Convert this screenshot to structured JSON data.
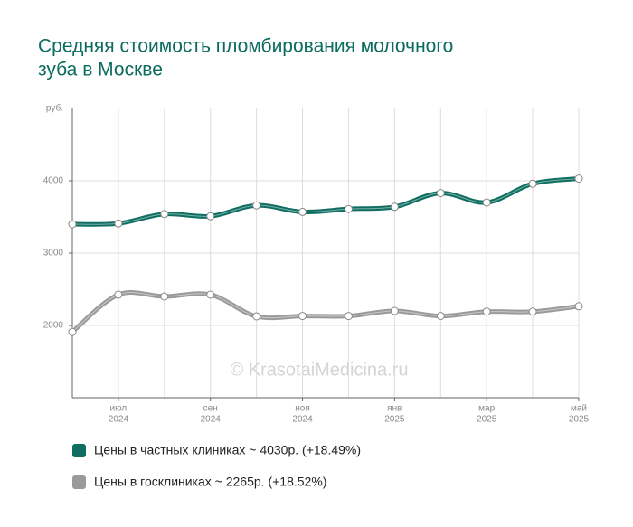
{
  "chart_data": {
    "type": "line",
    "title_lines": [
      "Средняя стоимость пломбирования молочного",
      "зуба в Москве"
    ],
    "y_label": "руб.",
    "categories": [
      null,
      [
        "июл",
        "2024"
      ],
      null,
      [
        "сен",
        "2024"
      ],
      null,
      [
        "ноя",
        "2024"
      ],
      null,
      [
        "янв",
        "2025"
      ],
      null,
      [
        "мар",
        "2025"
      ],
      null,
      [
        "май",
        "2025"
      ]
    ],
    "series": [
      {
        "name": "Цены в частных клиниках ~ 4030р. (+18.49%)",
        "color": "#0e6e61",
        "values": [
          3400,
          3410,
          3540,
          3510,
          3660,
          3570,
          3610,
          3640,
          3830,
          3700,
          3960,
          4030
        ]
      },
      {
        "name": "Цены в госклиниках ~ 2265р. (+18.52%)",
        "color": "#9a9a9a",
        "values": [
          1910,
          2425,
          2400,
          2425,
          2125,
          2130,
          2130,
          2200,
          2130,
          2190,
          2190,
          2265
        ]
      }
    ],
    "ylim": [
      1000,
      5000
    ],
    "yticks": [
      2000,
      3000,
      4000
    ],
    "grid": true,
    "watermark": "© KrasotaiMedicina.ru"
  }
}
